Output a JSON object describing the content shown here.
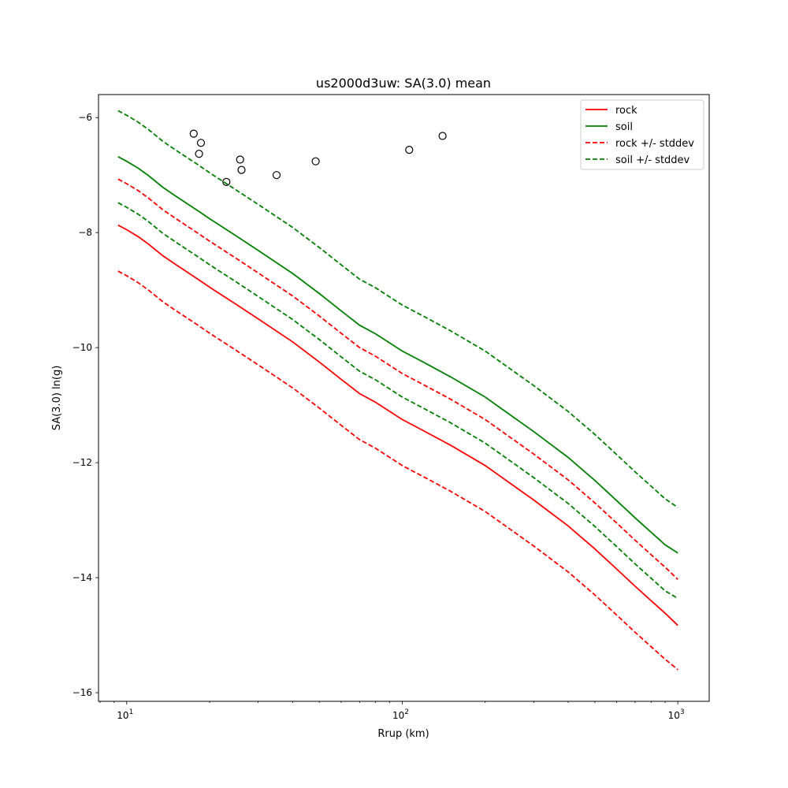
{
  "chart_data": {
    "type": "line",
    "title": "us2000d3uw: SA(3.0) mean",
    "xlabel": "Rrup (km)",
    "ylabel": "SA(3.0) ln(g)",
    "xscale": "log",
    "xlim": [
      7.9,
      1300
    ],
    "ylim": [
      -16.15,
      -5.6
    ],
    "x_ticks": [
      {
        "value": 10,
        "base": "10",
        "exp": "1"
      },
      {
        "value": 100,
        "base": "10",
        "exp": "2"
      },
      {
        "value": 1000,
        "base": "10",
        "exp": "3"
      }
    ],
    "y_ticks": [
      {
        "value": -6,
        "label": "−6"
      },
      {
        "value": -8,
        "label": "−8"
      },
      {
        "value": -10,
        "label": "−10"
      },
      {
        "value": -12,
        "label": "−12"
      },
      {
        "value": -14,
        "label": "−14"
      },
      {
        "value": -16,
        "label": "−16"
      }
    ],
    "grid": false,
    "legend_position": "top-right",
    "x": [
      9.3,
      10,
      11,
      12,
      13.5,
      15,
      18,
      20,
      25,
      30,
      40,
      50,
      60,
      70,
      80,
      100,
      120,
      150,
      200,
      300,
      400,
      500,
      600,
      700,
      800,
      900,
      1000
    ],
    "series": [
      {
        "name": "rock",
        "color": "#ff0000",
        "dash": "solid",
        "values": [
          -7.87,
          -7.95,
          -8.07,
          -8.2,
          -8.4,
          -8.55,
          -8.8,
          -8.95,
          -9.25,
          -9.5,
          -9.9,
          -10.25,
          -10.55,
          -10.8,
          -10.95,
          -11.25,
          -11.45,
          -11.7,
          -12.05,
          -12.65,
          -13.1,
          -13.5,
          -13.85,
          -14.15,
          -14.4,
          -14.62,
          -14.83
        ]
      },
      {
        "name": "soil",
        "color": "#008000",
        "dash": "solid",
        "values": [
          -6.68,
          -6.76,
          -6.88,
          -7.01,
          -7.21,
          -7.36,
          -7.61,
          -7.76,
          -8.06,
          -8.31,
          -8.71,
          -9.06,
          -9.36,
          -9.61,
          -9.76,
          -10.06,
          -10.26,
          -10.51,
          -10.86,
          -11.46,
          -11.91,
          -12.31,
          -12.66,
          -12.96,
          -13.21,
          -13.43,
          -13.57
        ]
      },
      {
        "name": "rock +/- stddev",
        "color": "#ff0000",
        "dash": "dashed",
        "values": [
          -7.07,
          -7.15,
          -7.27,
          -7.4,
          -7.6,
          -7.75,
          -8.0,
          -8.15,
          -8.45,
          -8.7,
          -9.1,
          -9.45,
          -9.75,
          -10.0,
          -10.15,
          -10.45,
          -10.65,
          -10.9,
          -11.25,
          -11.85,
          -12.3,
          -12.7,
          -13.05,
          -13.35,
          -13.6,
          -13.82,
          -14.03
        ]
      },
      {
        "name": "",
        "color": "#ff0000",
        "dash": "dashed",
        "values": [
          -8.67,
          -8.75,
          -8.87,
          -9.0,
          -9.2,
          -9.35,
          -9.6,
          -9.75,
          -10.05,
          -10.3,
          -10.7,
          -11.05,
          -11.35,
          -11.6,
          -11.75,
          -12.05,
          -12.25,
          -12.5,
          -12.85,
          -13.45,
          -13.9,
          -14.3,
          -14.65,
          -14.95,
          -15.2,
          -15.42,
          -15.6
        ]
      },
      {
        "name": "soil +/- stddev",
        "color": "#008000",
        "dash": "dashed",
        "values": [
          -5.88,
          -5.96,
          -6.08,
          -6.21,
          -6.41,
          -6.56,
          -6.81,
          -6.96,
          -7.26,
          -7.51,
          -7.91,
          -8.26,
          -8.56,
          -8.81,
          -8.96,
          -9.26,
          -9.46,
          -9.71,
          -10.06,
          -10.66,
          -11.11,
          -11.51,
          -11.86,
          -12.16,
          -12.41,
          -12.63,
          -12.78
        ]
      },
      {
        "name": "",
        "color": "#008000",
        "dash": "dashed",
        "values": [
          -7.48,
          -7.56,
          -7.68,
          -7.81,
          -8.01,
          -8.16,
          -8.41,
          -8.56,
          -8.86,
          -9.11,
          -9.51,
          -9.86,
          -10.16,
          -10.41,
          -10.56,
          -10.86,
          -11.06,
          -11.31,
          -11.66,
          -12.26,
          -12.71,
          -13.11,
          -13.46,
          -13.76,
          -14.01,
          -14.23,
          -14.36
        ]
      }
    ],
    "observations": {
      "marker": "open-circle",
      "color": "#000000",
      "points": [
        {
          "x": 17.5,
          "y": -6.28
        },
        {
          "x": 18.6,
          "y": -6.44
        },
        {
          "x": 18.3,
          "y": -6.63
        },
        {
          "x": 25.8,
          "y": -6.73
        },
        {
          "x": 26.1,
          "y": -6.91
        },
        {
          "x": 23.0,
          "y": -7.12
        },
        {
          "x": 35.0,
          "y": -7.0
        },
        {
          "x": 48.5,
          "y": -6.76
        },
        {
          "x": 106.0,
          "y": -6.56
        },
        {
          "x": 140.0,
          "y": -6.32
        }
      ]
    }
  }
}
